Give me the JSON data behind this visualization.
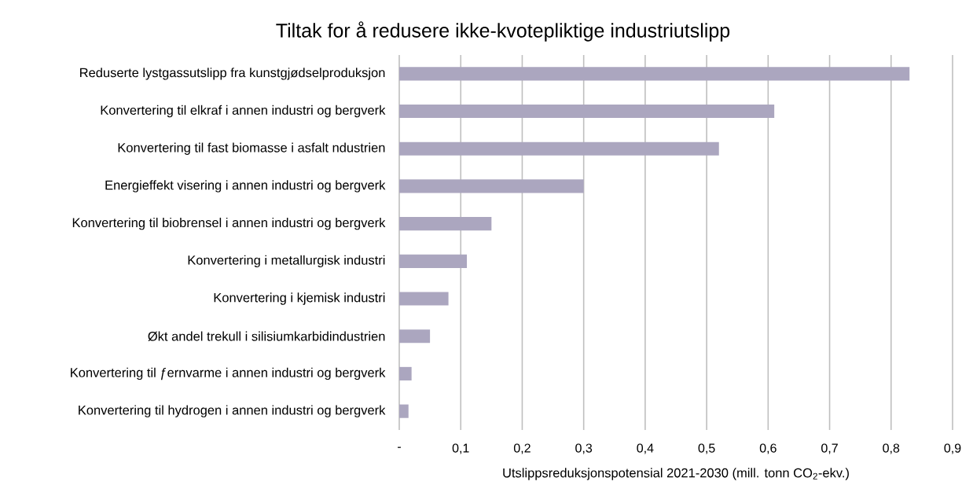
{
  "chart_data": {
    "type": "bar",
    "orientation": "horizontal",
    "title": "Tiltak for å redusere ikke-kvotepliktige industriutslipp",
    "xlabel": "Utslippsreduksjonspotensial 2021-2030 (mill. tonn CO$_{2}$-ekv.)",
    "categories": [
      "Reduserte lystgassutslipp fra kunstgjødselproduksjon",
      "Konvertering til elkraf i annen industri og bergverk",
      "Konvertering til fast biomasse i asfalt ndustrien",
      "Energieffekt visering i annen industri og bergverk",
      "Konvertering til biobrensel i annen industri og bergverk",
      "Konvertering i metallurgisk industri",
      "Konvertering i kjemisk industri",
      "Økt andel trekull i silisiumkarbidindustrien",
      "Konvertering til ƒernvarme i annen industri og bergverk",
      "Konvertering til hydrogen i annen industri og bergverk"
    ],
    "values": [
      0.83,
      0.61,
      0.52,
      0.3,
      0.15,
      0.11,
      0.08,
      0.05,
      0.02,
      0.015
    ],
    "color": "#aba6bf",
    "xlim": [
      0,
      0.9
    ],
    "xticks": [
      {
        "value": 0,
        "label": "-"
      },
      {
        "value": 0.1,
        "label": "0,1"
      },
      {
        "value": 0.2,
        "label": "0,2"
      },
      {
        "value": 0.3,
        "label": "0,3"
      },
      {
        "value": 0.4,
        "label": "0,4"
      },
      {
        "value": 0.5,
        "label": "0,5"
      },
      {
        "value": 0.6,
        "label": "0,6"
      },
      {
        "value": 0.7,
        "label": "0,7"
      },
      {
        "value": 0.8,
        "label": "0,8"
      },
      {
        "value": 0.9,
        "label": "0,9"
      }
    ],
    "grid": "x"
  }
}
